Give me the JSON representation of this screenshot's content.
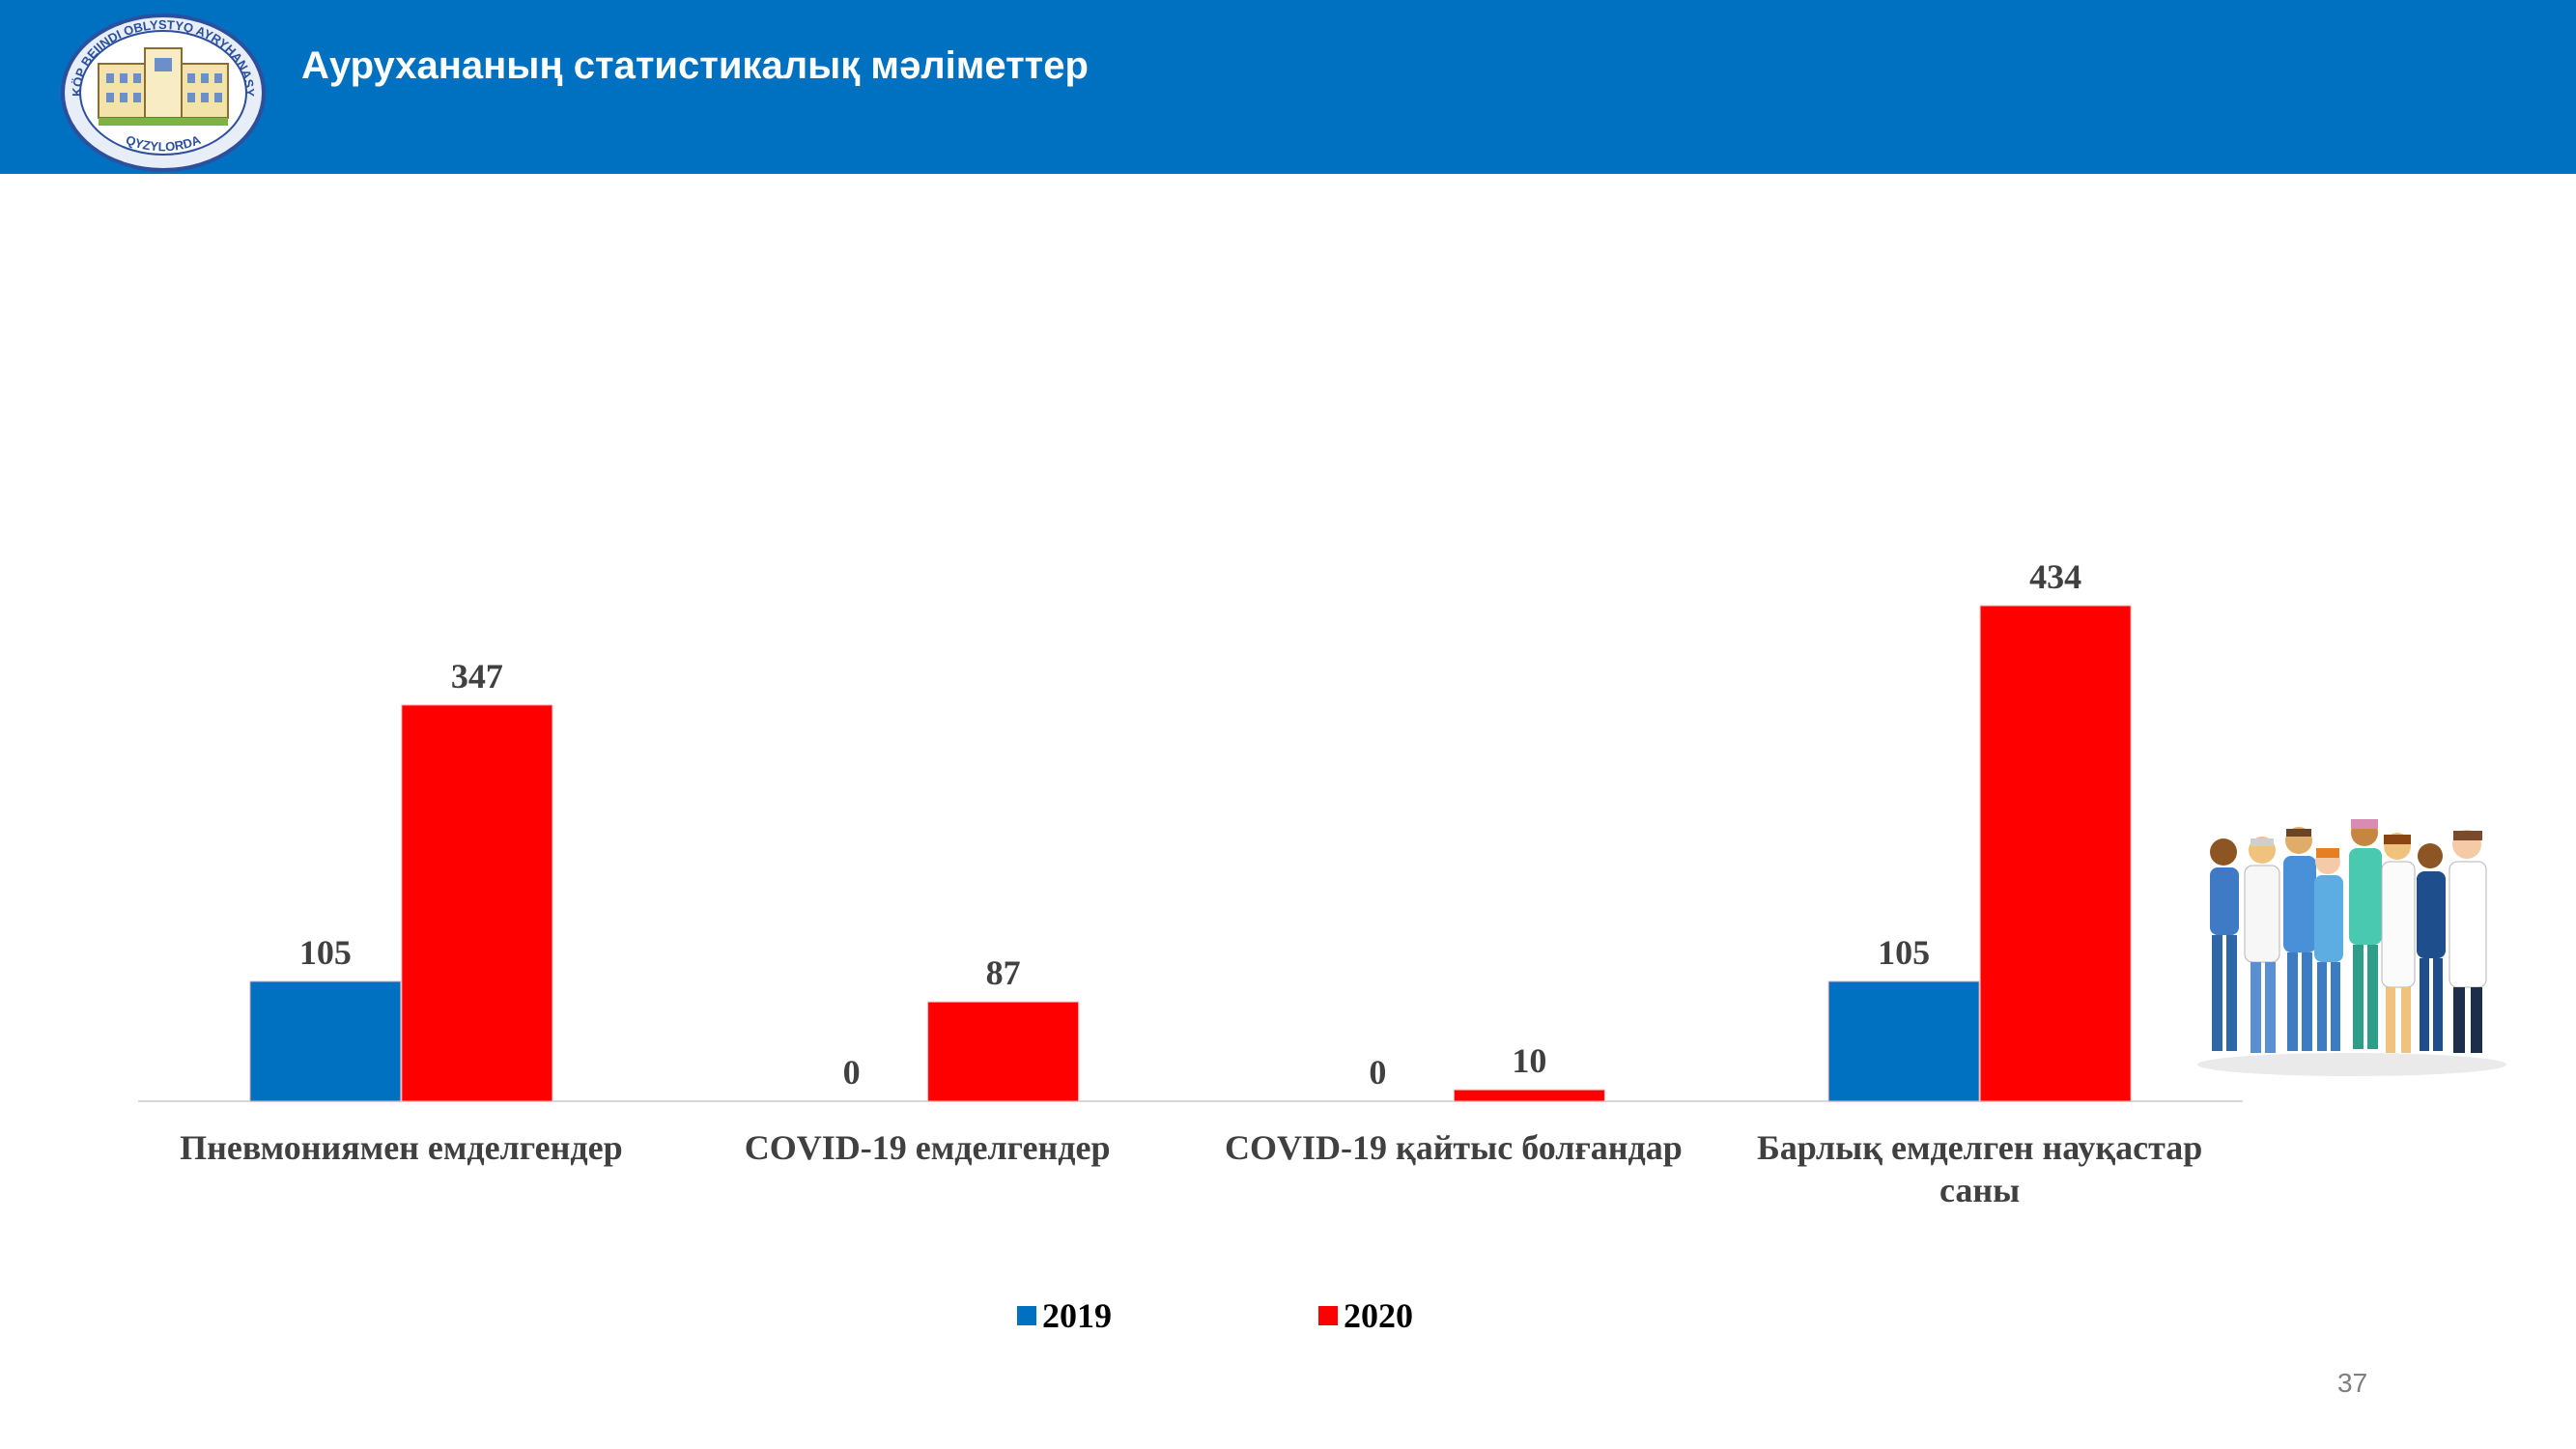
{
  "header": {
    "title": "Аурухананың статистикалық мәліметтер",
    "logo_text_top": "KÖP BEIINDI OBLYSTYQ AYRYHANASY",
    "logo_text_bottom": "QYZYLORDA"
  },
  "page_number": "37",
  "colors": {
    "header_bg": "#0070c0",
    "series_2019": "#0070c0",
    "series_2020": "#ff0000"
  },
  "decor": {
    "people_icon": "medical-staff-illustration"
  },
  "chart_data": {
    "type": "bar",
    "categories": [
      [
        "Пневмониямен емделгендер"
      ],
      [
        "COVID-19 емделгендер"
      ],
      [
        "COVID-19 қайтыс болғандар"
      ],
      [
        "Барлық емделген науқастар",
        "саны"
      ]
    ],
    "series": [
      {
        "name": "2019",
        "color": "#0070c0",
        "values": [
          105,
          0,
          0,
          105
        ]
      },
      {
        "name": "2020",
        "color": "#ff0000",
        "values": [
          347,
          87,
          10,
          434
        ]
      }
    ],
    "data_labels": true,
    "legend_position": "bottom",
    "grid": false
  }
}
